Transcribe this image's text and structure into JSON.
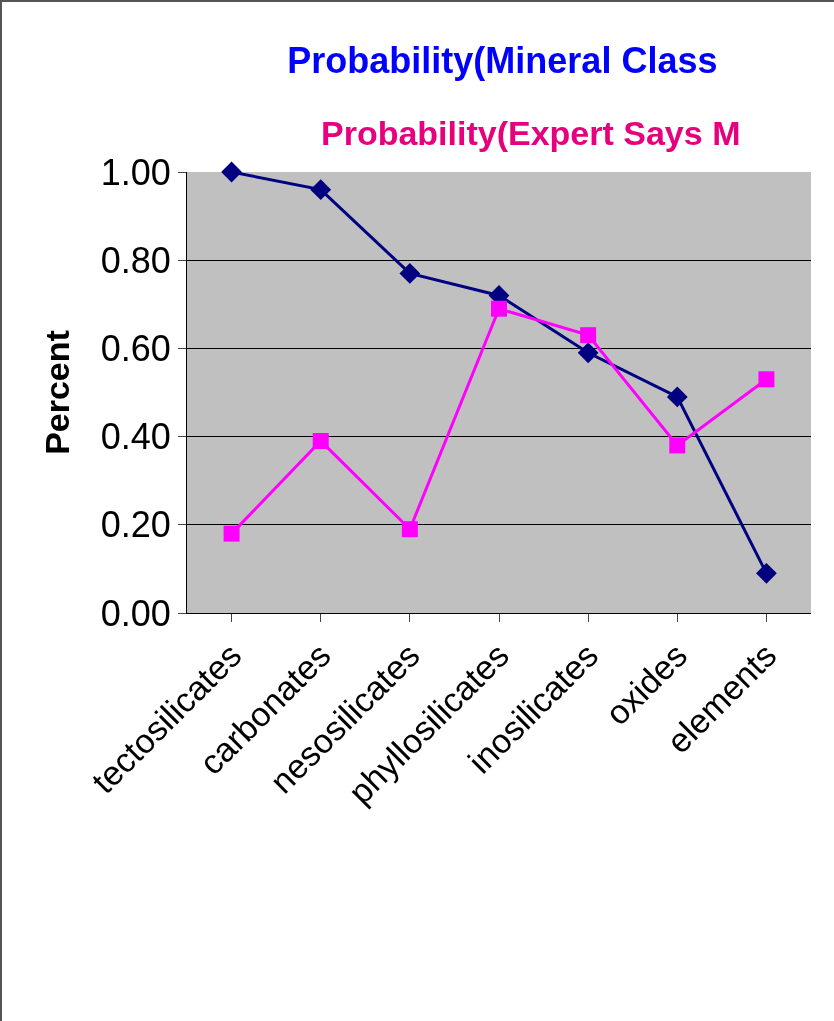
{
  "chart_data": {
    "type": "line",
    "title": "Probability(Mineral Class",
    "subtitle": "Probability(Expert Says M",
    "ylabel": "Percent",
    "categories": [
      "tectosilicates",
      "carbonates",
      "nesosilicates",
      "phyllosilicates",
      "inosilicates",
      "oxides",
      "elements"
    ],
    "series": [
      {
        "color": "#000080",
        "marker": "diamond",
        "values": [
          1.0,
          0.96,
          0.77,
          0.72,
          0.59,
          0.49,
          0.09
        ]
      },
      {
        "color": "#ff00ff",
        "marker": "square",
        "values": [
          0.18,
          0.39,
          0.19,
          0.69,
          0.63,
          0.38,
          0.53
        ]
      }
    ],
    "ylim": [
      0,
      1
    ],
    "yticks": [
      {
        "value": 0,
        "label": "0.00"
      },
      {
        "value": 0.2,
        "label": "0.20"
      },
      {
        "value": 0.4,
        "label": "0.40"
      },
      {
        "value": 0.6,
        "label": "0.60"
      },
      {
        "value": 0.8,
        "label": "0.80"
      },
      {
        "value": 1,
        "label": "1.00"
      }
    ],
    "grid": "y",
    "legend": false
  }
}
